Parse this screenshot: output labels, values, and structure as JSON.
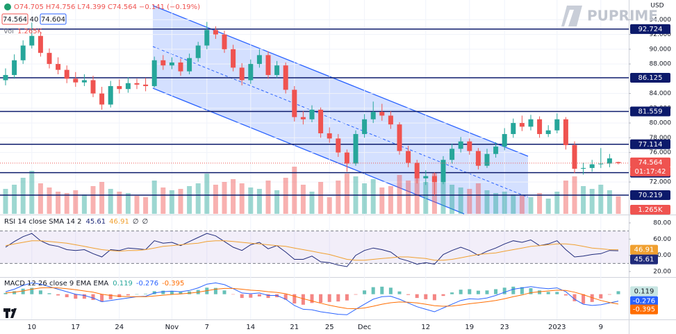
{
  "header": {
    "open": "O74.705",
    "high": "H74.756",
    "low": "L74.399",
    "close": "C74.564",
    "change": "−0.141 (−0.19%)",
    "bid": 74.564,
    "spread": 40,
    "ask": 74.604,
    "brand": "PUPRIME"
  },
  "chart_data": [
    {
      "type": "candlestick",
      "currency": "USD",
      "countdown": "01:17:42",
      "categories": [
        null,
        null,
        null,
        "10",
        null,
        null,
        null,
        null,
        "17",
        null,
        null,
        null,
        null,
        "24",
        null,
        null,
        null,
        null,
        null,
        "Nov",
        null,
        null,
        null,
        "7",
        null,
        null,
        null,
        null,
        "14",
        null,
        null,
        null,
        null,
        "21",
        null,
        null,
        null,
        "25",
        null,
        null,
        null,
        "Dec",
        null,
        null,
        null,
        null,
        null,
        null,
        "12",
        null,
        null,
        null,
        null,
        "19",
        null,
        null,
        null,
        "23",
        null,
        null,
        null,
        null,
        null,
        "2023",
        null,
        null,
        null,
        null,
        "9",
        null,
        null
      ],
      "open": [
        85.8,
        86.5,
        88.5,
        90.5,
        91.8,
        89.5,
        88.0,
        87.2,
        86.0,
        85.5,
        85.8,
        84.0,
        82.5,
        85.0,
        84.6,
        85.4,
        85.2,
        85.0,
        88.5,
        87.8,
        88.2,
        87.0,
        88.8,
        90.5,
        92.6,
        92.0,
        90.0,
        87.5,
        85.8,
        88.0,
        89.2,
        86.5,
        87.8,
        84.5,
        80.8,
        80.5,
        81.8,
        78.6,
        77.9,
        76.0,
        74.5,
        78.5,
        80.5,
        81.5,
        81.0,
        79.8,
        76.2,
        74.6,
        72.5,
        72.8,
        72.0,
        75.0,
        76.5,
        77.5,
        76.2,
        74.2,
        75.8,
        76.8,
        78.5,
        80.0,
        79.5,
        80.5,
        78.5,
        79.0,
        80.5,
        77.0,
        73.8,
        73.9,
        74.4,
        74.5,
        74.705
      ],
      "high": [
        87.4,
        89.3,
        91.2,
        93.6,
        92.3,
        90.1,
        88.9,
        87.8,
        86.9,
        86.6,
        86.4,
        84.9,
        85.7,
        85.9,
        86.2,
        86.0,
        86.1,
        89.0,
        89.2,
        88.9,
        88.7,
        89.4,
        91.0,
        93.7,
        93.1,
        92.5,
        90.6,
        88.1,
        88.6,
        90.0,
        89.7,
        88.4,
        88.2,
        85.0,
        81.6,
        82.4,
        82.1,
        79.4,
        78.5,
        76.4,
        79.0,
        81.2,
        82.9,
        82.6,
        81.6,
        80.1,
        76.9,
        75.0,
        73.6,
        73.3,
        75.5,
        77.2,
        78.1,
        77.9,
        76.6,
        76.5,
        77.4,
        79.3,
        80.6,
        81.0,
        81.1,
        80.9,
        79.7,
        81.3,
        80.8,
        77.5,
        74.6,
        75.0,
        76.6,
        75.8,
        74.756
      ],
      "low": [
        85.1,
        86.0,
        88.0,
        90.1,
        89.0,
        87.4,
        86.6,
        85.4,
        84.9,
        85.0,
        83.5,
        81.8,
        82.1,
        84.0,
        84.1,
        84.6,
        84.3,
        84.8,
        87.2,
        87.3,
        86.4,
        86.6,
        88.3,
        90.0,
        91.4,
        89.5,
        87.0,
        85.1,
        85.3,
        87.5,
        86.0,
        86.1,
        84.0,
        80.2,
        79.8,
        80.1,
        78.0,
        77.3,
        75.4,
        73.4,
        74.2,
        78.0,
        80.0,
        80.3,
        79.2,
        75.7,
        74.0,
        71.8,
        71.6,
        70.2,
        71.7,
        74.5,
        76.0,
        75.7,
        73.7,
        73.9,
        75.3,
        76.3,
        78.0,
        78.9,
        79.0,
        78.0,
        78.1,
        78.6,
        76.4,
        73.2,
        73.0,
        73.4,
        73.9,
        74.0,
        74.399
      ],
      "close": [
        86.5,
        88.5,
        90.5,
        91.8,
        89.5,
        88.0,
        87.2,
        86.0,
        85.5,
        85.8,
        84.0,
        82.5,
        85.0,
        84.6,
        85.4,
        85.2,
        85.0,
        88.5,
        87.8,
        88.2,
        87.0,
        88.8,
        90.5,
        92.6,
        92.0,
        90.0,
        87.5,
        85.8,
        88.0,
        89.2,
        86.5,
        87.8,
        84.5,
        80.8,
        80.5,
        81.8,
        78.6,
        77.9,
        76.0,
        74.5,
        78.5,
        80.5,
        81.5,
        81.0,
        79.8,
        76.2,
        74.6,
        72.5,
        72.8,
        72.0,
        75.0,
        76.5,
        77.5,
        76.2,
        74.2,
        75.8,
        76.8,
        78.5,
        80.0,
        79.5,
        80.5,
        78.5,
        79.0,
        80.5,
        77.0,
        73.8,
        73.9,
        74.4,
        74.5,
        75.2,
        74.564
      ],
      "up_color": "#26a69a",
      "down_color": "#ef5350",
      "ylim": [
        67.68,
        96.67
      ],
      "yticks": [
        {
          "value": 72,
          "label": "72.000"
        },
        {
          "value": 76,
          "label": "76.000"
        },
        {
          "value": 78,
          "label": "78.000"
        },
        {
          "value": 80,
          "label": "80.000"
        },
        {
          "value": 82,
          "label": "82.000"
        },
        {
          "value": 84,
          "label": "84.000"
        },
        {
          "value": 88,
          "label": "88.000"
        },
        {
          "value": 90,
          "label": "90.000"
        },
        {
          "value": 92,
          "label": "92.000"
        },
        {
          "value": 94,
          "label": "94.000"
        }
      ],
      "grid": true,
      "levels": [
        92.724,
        86.125,
        81.559,
        77.114,
        73.264,
        70.219
      ],
      "level_color": "#0c1a6b",
      "volume": {
        "name": "Vol",
        "last_label": "1.265K",
        "values": [
          1.8,
          2.1,
          2.6,
          3.1,
          2.2,
          1.9,
          1.6,
          1.5,
          1.7,
          1.4,
          2.0,
          2.3,
          1.8,
          1.6,
          1.5,
          1.3,
          1.2,
          2.4,
          1.9,
          1.7,
          1.8,
          2.0,
          2.2,
          2.9,
          2.1,
          2.3,
          2.5,
          2.2,
          1.9,
          1.8,
          2.4,
          1.7,
          2.6,
          3.4,
          2.1,
          1.6,
          2.3,
          1.2,
          2.4,
          2.9,
          2.7,
          2.2,
          2.5,
          1.9,
          2.0,
          2.8,
          2.4,
          2.6,
          2.3,
          3.0,
          2.5,
          2.1,
          1.9,
          1.8,
          2.2,
          1.7,
          1.5,
          1.6,
          1.4,
          1.3,
          1.2,
          1.5,
          1.1,
          1.6,
          2.4,
          2.7,
          2.0,
          1.8,
          2.1,
          1.7,
          1.265
        ]
      }
    },
    {
      "type": "line",
      "title": "RSI 14 close SMA 14 2",
      "extra": [
        "∅",
        "∅"
      ],
      "series": [
        {
          "color": "#1f2a7a",
          "values": [
            50,
            57,
            63,
            67,
            58,
            53,
            51,
            47,
            46,
            47,
            42,
            38,
            47,
            46,
            49,
            48,
            47,
            58,
            55,
            56,
            52,
            57,
            62,
            67,
            64,
            57,
            50,
            46,
            53,
            56,
            48,
            52,
            44,
            35,
            35,
            39,
            32,
            31,
            28,
            26,
            40,
            46,
            49,
            47,
            44,
            36,
            33,
            29,
            31,
            29,
            41,
            46,
            50,
            46,
            40,
            45,
            49,
            54,
            58,
            56,
            59,
            52,
            54,
            58,
            47,
            38,
            39,
            41,
            42,
            46,
            45.61
          ]
        },
        {
          "color": "#f0a030",
          "values": [
            52,
            54,
            56,
            58,
            58,
            57,
            56,
            55,
            53,
            51,
            49,
            47,
            46,
            45,
            46,
            46,
            47,
            49,
            51,
            52,
            53,
            54,
            55,
            57,
            58,
            58,
            57,
            56,
            55,
            54,
            53,
            52,
            51,
            49,
            47,
            45,
            43,
            41,
            38,
            35,
            34,
            34,
            35,
            36,
            37,
            38,
            38,
            37,
            36,
            34,
            34,
            35,
            37,
            39,
            41,
            42,
            43,
            45,
            47,
            49,
            51,
            52,
            53,
            54,
            54,
            53,
            51,
            49,
            48,
            47,
            46.91
          ]
        }
      ],
      "ylim": [
        14,
        87.7
      ],
      "yticks": [
        {
          "value": 20,
          "label": "20.00"
        },
        {
          "value": 40,
          "label": "40.00"
        },
        {
          "value": 60,
          "label": "60.00"
        },
        {
          "value": 80,
          "label": "80.00"
        }
      ],
      "band": [
        30,
        70
      ]
    },
    {
      "type": "macd",
      "title": "MACD 12 26 close 9 EMA EMA",
      "histogram": {
        "up_color": "#26a69a",
        "down_color": "#ef5350",
        "values": [
          0.05,
          0.12,
          0.22,
          0.25,
          0.15,
          0.04,
          -0.05,
          -0.12,
          -0.18,
          -0.18,
          -0.23,
          -0.3,
          -0.2,
          -0.12,
          -0.05,
          0,
          0.02,
          0.12,
          0.14,
          0.13,
          0.09,
          0.11,
          0.17,
          0.26,
          0.25,
          0.15,
          -0.01,
          -0.15,
          -0.14,
          -0.09,
          -0.15,
          -0.12,
          -0.22,
          -0.37,
          -0.42,
          -0.35,
          -0.34,
          -0.31,
          -0.29,
          -0.25,
          -0.02,
          0.15,
          0.28,
          0.3,
          0.26,
          0.11,
          -0.03,
          -0.15,
          -0.2,
          -0.24,
          -0.07,
          0.07,
          0.18,
          0.2,
          0.14,
          0.15,
          0.2,
          0.26,
          0.3,
          0.28,
          0.24,
          0.15,
          0.09,
          0.09,
          -0.05,
          -0.28,
          -0.38,
          -0.31,
          -0.17,
          -0.02,
          0.119
        ]
      },
      "series": [
        {
          "color": "#2962ff",
          "values": [
            0.1,
            0.2,
            0.35,
            0.45,
            0.4,
            0.3,
            0.2,
            0.1,
            0,
            -0.05,
            -0.15,
            -0.3,
            -0.25,
            -0.2,
            -0.15,
            -0.1,
            -0.08,
            0.05,
            0.1,
            0.12,
            0.1,
            0.15,
            0.25,
            0.4,
            0.45,
            0.38,
            0.22,
            0.05,
            0.02,
            0.05,
            -0.05,
            -0.05,
            -0.2,
            -0.45,
            -0.6,
            -0.62,
            -0.7,
            -0.75,
            -0.8,
            -0.82,
            -0.6,
            -0.4,
            -0.2,
            -0.1,
            -0.08,
            -0.2,
            -0.35,
            -0.5,
            -0.6,
            -0.7,
            -0.55,
            -0.4,
            -0.25,
            -0.18,
            -0.2,
            -0.15,
            -0.05,
            0.08,
            0.2,
            0.25,
            0.3,
            0.25,
            0.22,
            0.25,
            0.1,
            -0.2,
            -0.4,
            -0.45,
            -0.42,
            -0.35,
            -0.276
          ]
        },
        {
          "color": "#ff6d00",
          "values": [
            0.05,
            0.08,
            0.13,
            0.2,
            0.25,
            0.26,
            0.25,
            0.22,
            0.18,
            0.13,
            0.08,
            0,
            -0.05,
            -0.08,
            -0.1,
            -0.1,
            -0.1,
            -0.07,
            -0.04,
            -0.01,
            0.01,
            0.04,
            0.08,
            0.14,
            0.2,
            0.23,
            0.23,
            0.2,
            0.16,
            0.14,
            0.1,
            0.07,
            0.02,
            -0.08,
            -0.18,
            -0.27,
            -0.36,
            -0.44,
            -0.51,
            -0.57,
            -0.58,
            -0.55,
            -0.48,
            -0.4,
            -0.34,
            -0.31,
            -0.32,
            -0.35,
            -0.4,
            -0.46,
            -0.48,
            -0.47,
            -0.43,
            -0.38,
            -0.34,
            -0.3,
            -0.25,
            -0.18,
            -0.1,
            -0.03,
            0.06,
            0.1,
            0.13,
            0.16,
            0.15,
            0.08,
            -0.02,
            -0.14,
            -0.25,
            -0.33,
            -0.395
          ]
        }
      ],
      "ylim": [
        -0.95,
        0.6
      ]
    }
  ]
}
